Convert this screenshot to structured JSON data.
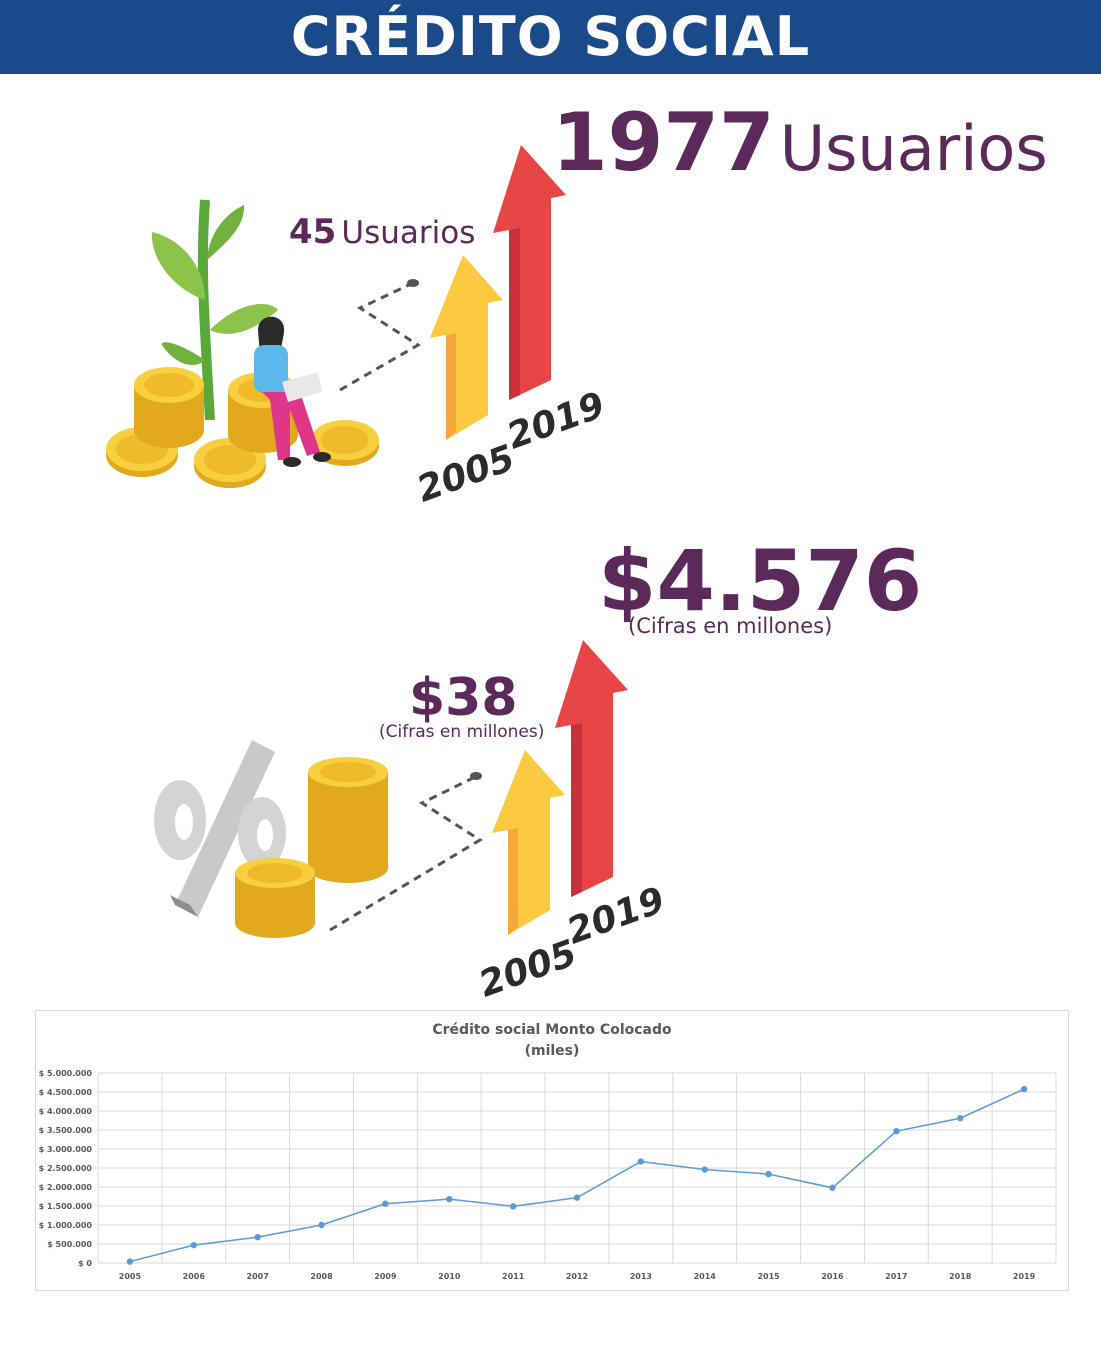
{
  "header": {
    "title": "CRÉDITO SOCIAL"
  },
  "users_section": {
    "start_value": "45",
    "start_unit": "Usuarios",
    "end_value": "1977",
    "end_unit": "Usuarios",
    "year_start": "2005",
    "year_end": "2019"
  },
  "amount_section": {
    "start_value": "$38",
    "start_caption": "(Cifras en millones)",
    "end_value": "$4.576",
    "end_caption": "(Cifras en millones)",
    "year_start": "2005",
    "year_end": "2019"
  },
  "colors": {
    "banner": "#1b4a8b",
    "stat_text": "#5c2a5a",
    "arrow_yellow": "#fcc940",
    "arrow_red": "#e84646",
    "series_line": "#5b9bd5"
  },
  "chart_data": {
    "type": "line",
    "title": "Crédito social Monto Colocado",
    "subtitle": "(miles)",
    "categories": [
      "2005",
      "2006",
      "2007",
      "2008",
      "2009",
      "2010",
      "2011",
      "2012",
      "2013",
      "2014",
      "2015",
      "2016",
      "2017",
      "2018",
      "2019"
    ],
    "series": [
      {
        "values": [
          38000,
          470000,
          680000,
          1000000,
          1560000,
          1680000,
          1490000,
          1720000,
          2670000,
          2460000,
          2340000,
          1980000,
          3470000,
          3810000,
          4576000
        ]
      }
    ],
    "yticks": [
      "$ 0",
      "$ 500.000",
      "$ 1.000.000",
      "$ 1.500.000",
      "$ 2.000.000",
      "$ 2.500.000",
      "$ 3.000.000",
      "$ 3.500.000",
      "$ 4.000.000",
      "$ 4.500.000",
      "$ 5.000.000"
    ],
    "ylim": [
      0,
      5000000
    ],
    "grid": true,
    "legend": "none"
  }
}
